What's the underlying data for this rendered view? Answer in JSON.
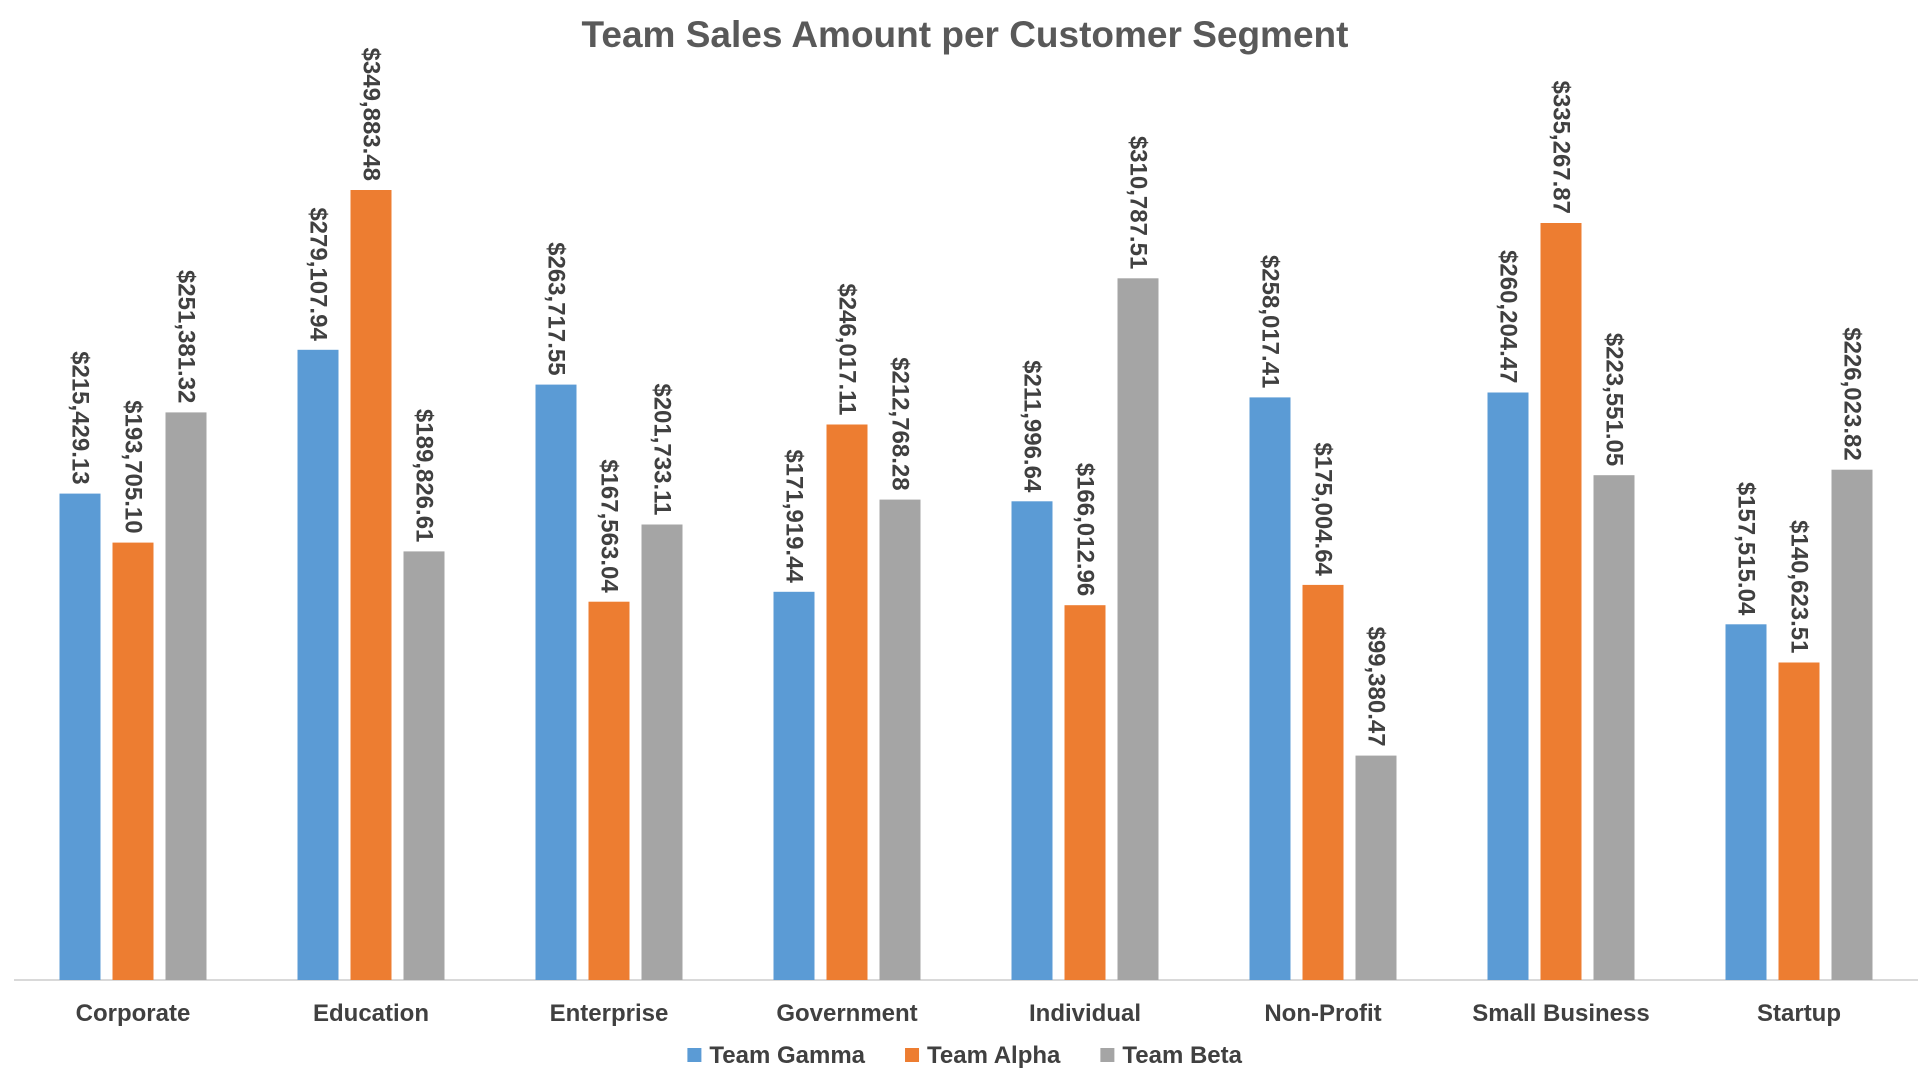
{
  "chart_data": {
    "type": "bar",
    "title": "Team Sales Amount per Customer Segment",
    "xlabel": "",
    "ylabel": "",
    "ylim": [
      0,
      370000
    ],
    "grid": false,
    "legend_position": "bottom",
    "categories": [
      "Corporate",
      "Education",
      "Enterprise",
      "Government",
      "Individual",
      "Non-Profit",
      "Small Business",
      "Startup"
    ],
    "series": [
      {
        "name": "Team Gamma",
        "color": "#5B9BD5",
        "values": [
          215429.13,
          279107.94,
          263717.55,
          171919.44,
          211996.64,
          258017.41,
          260204.47,
          157515.04
        ],
        "labels": [
          "$215,429.13",
          "$279,107.94",
          "$263,717.55",
          "$171,919.44",
          "$211,996.64",
          "$258,017.41",
          "$260,204.47",
          "$157,515.04"
        ]
      },
      {
        "name": "Team Alpha",
        "color": "#ED7D31",
        "values": [
          193705.1,
          349883.48,
          167563.04,
          246017.11,
          166012.96,
          175004.64,
          335267.87,
          140623.51
        ],
        "labels": [
          "$193,705.10",
          "$349,883.48",
          "$167,563.04",
          "$246,017.11",
          "$166,012.96",
          "$175,004.64",
          "$335,267.87",
          "$140,623.51"
        ]
      },
      {
        "name": "Team Beta",
        "color": "#A5A5A5",
        "values": [
          251381.32,
          189826.61,
          201733.11,
          212768.28,
          310787.51,
          99380.47,
          223551.05,
          226023.82
        ],
        "labels": [
          "$251,381.32",
          "$189,826.61",
          "$201,733.11",
          "$212,768.28",
          "$310,787.51",
          "$99,380.47",
          "$223,551.05",
          "$226,023.82"
        ]
      }
    ]
  }
}
